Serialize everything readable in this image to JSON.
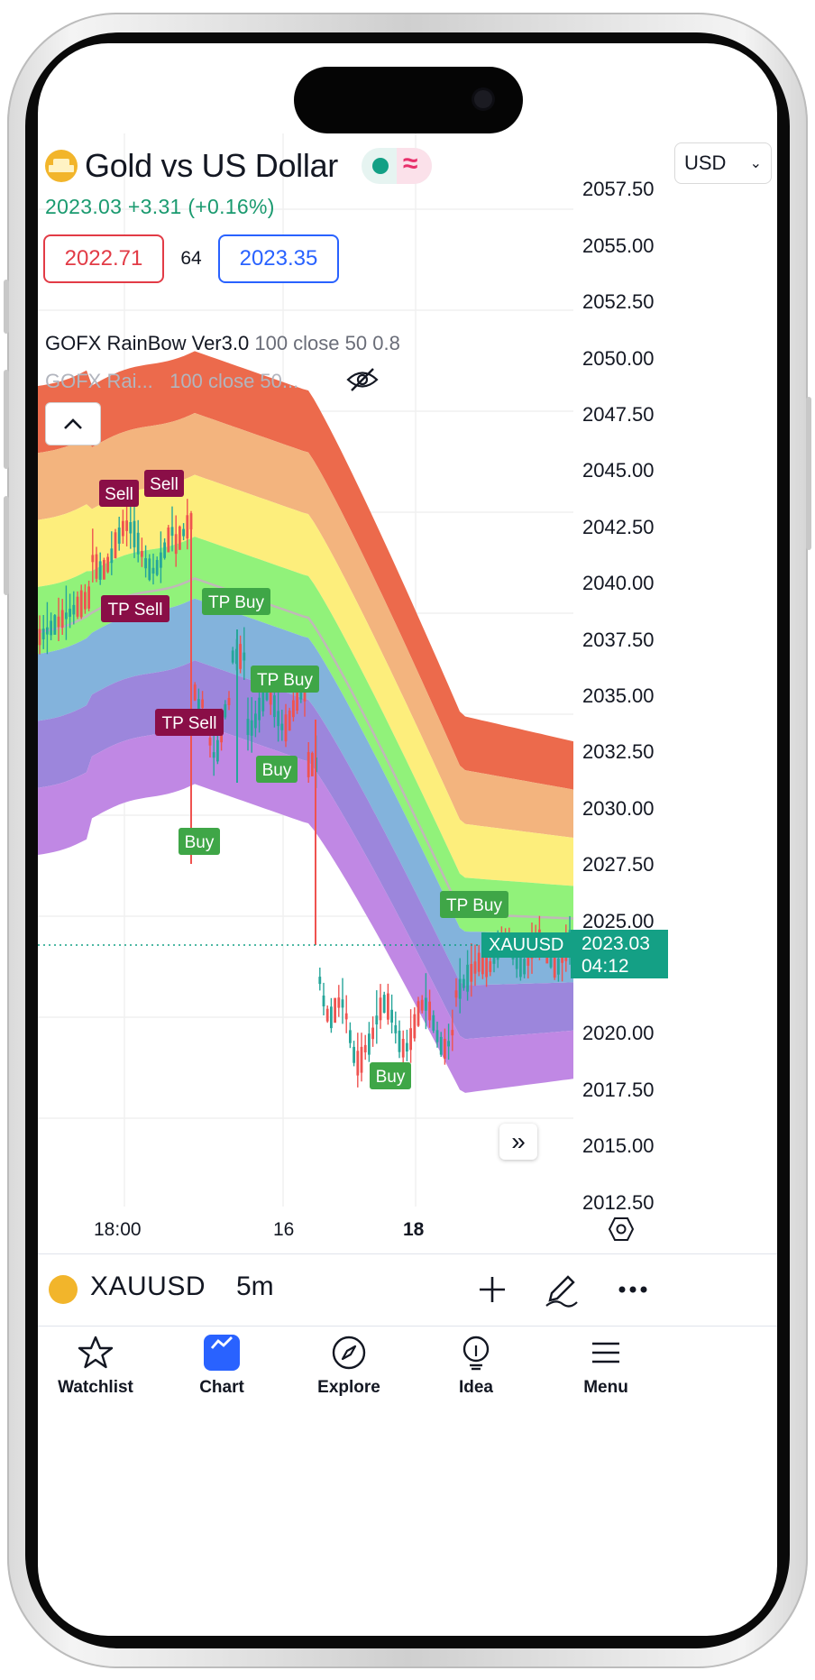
{
  "header": {
    "title": "Gold vs US Dollar",
    "currency": "USD",
    "price_change": "2023.03  +3.31 (+0.16%)"
  },
  "quote": {
    "bid": "2022.71",
    "spread": "64",
    "ask": "2023.35"
  },
  "indicators": [
    {
      "name": "GOFX RainBow Ver3.0",
      "params": "100 close 50 0.8"
    },
    {
      "name": "GOFX Rai...",
      "params": "100 close 50..."
    }
  ],
  "price_axis": [
    "2057.50",
    "2055.00",
    "2052.50",
    "2050.00",
    "2047.50",
    "2045.00",
    "2042.50",
    "2040.00",
    "2037.50",
    "2035.00",
    "2032.50",
    "2030.00",
    "2027.50",
    "2025.00",
    "2020.00",
    "2017.50",
    "2015.00",
    "2012.50"
  ],
  "last_price": {
    "symbol": "XAUUSD",
    "price": "2023.03",
    "countdown": "04:12"
  },
  "time_axis": [
    "18:00",
    "16",
    "18"
  ],
  "signals": [
    "Sell",
    "Sell",
    "TP Sell",
    "TP Buy",
    "TP Buy",
    "TP Sell",
    "Buy",
    "Buy",
    "TP Buy",
    "Buy"
  ],
  "chart_data": {
    "type": "candlestick",
    "ylim": [
      2010,
      2060
    ],
    "band_colors": [
      "#ec6a4c",
      "#f3b47e",
      "#fdee7c",
      "#91f27a",
      "#83b3dc",
      "#9c86dc",
      "#c088e4"
    ]
  },
  "symbol_bar": {
    "symbol": "XAUUSD",
    "timeframe": "5m"
  },
  "nav": [
    {
      "label": "Watchlist",
      "icon": "star-icon"
    },
    {
      "label": "Chart",
      "icon": "chart-icon"
    },
    {
      "label": "Explore",
      "icon": "compass-icon"
    },
    {
      "label": "Idea",
      "icon": "lightbulb-icon"
    },
    {
      "label": "Menu",
      "icon": "hamburger-icon"
    }
  ]
}
